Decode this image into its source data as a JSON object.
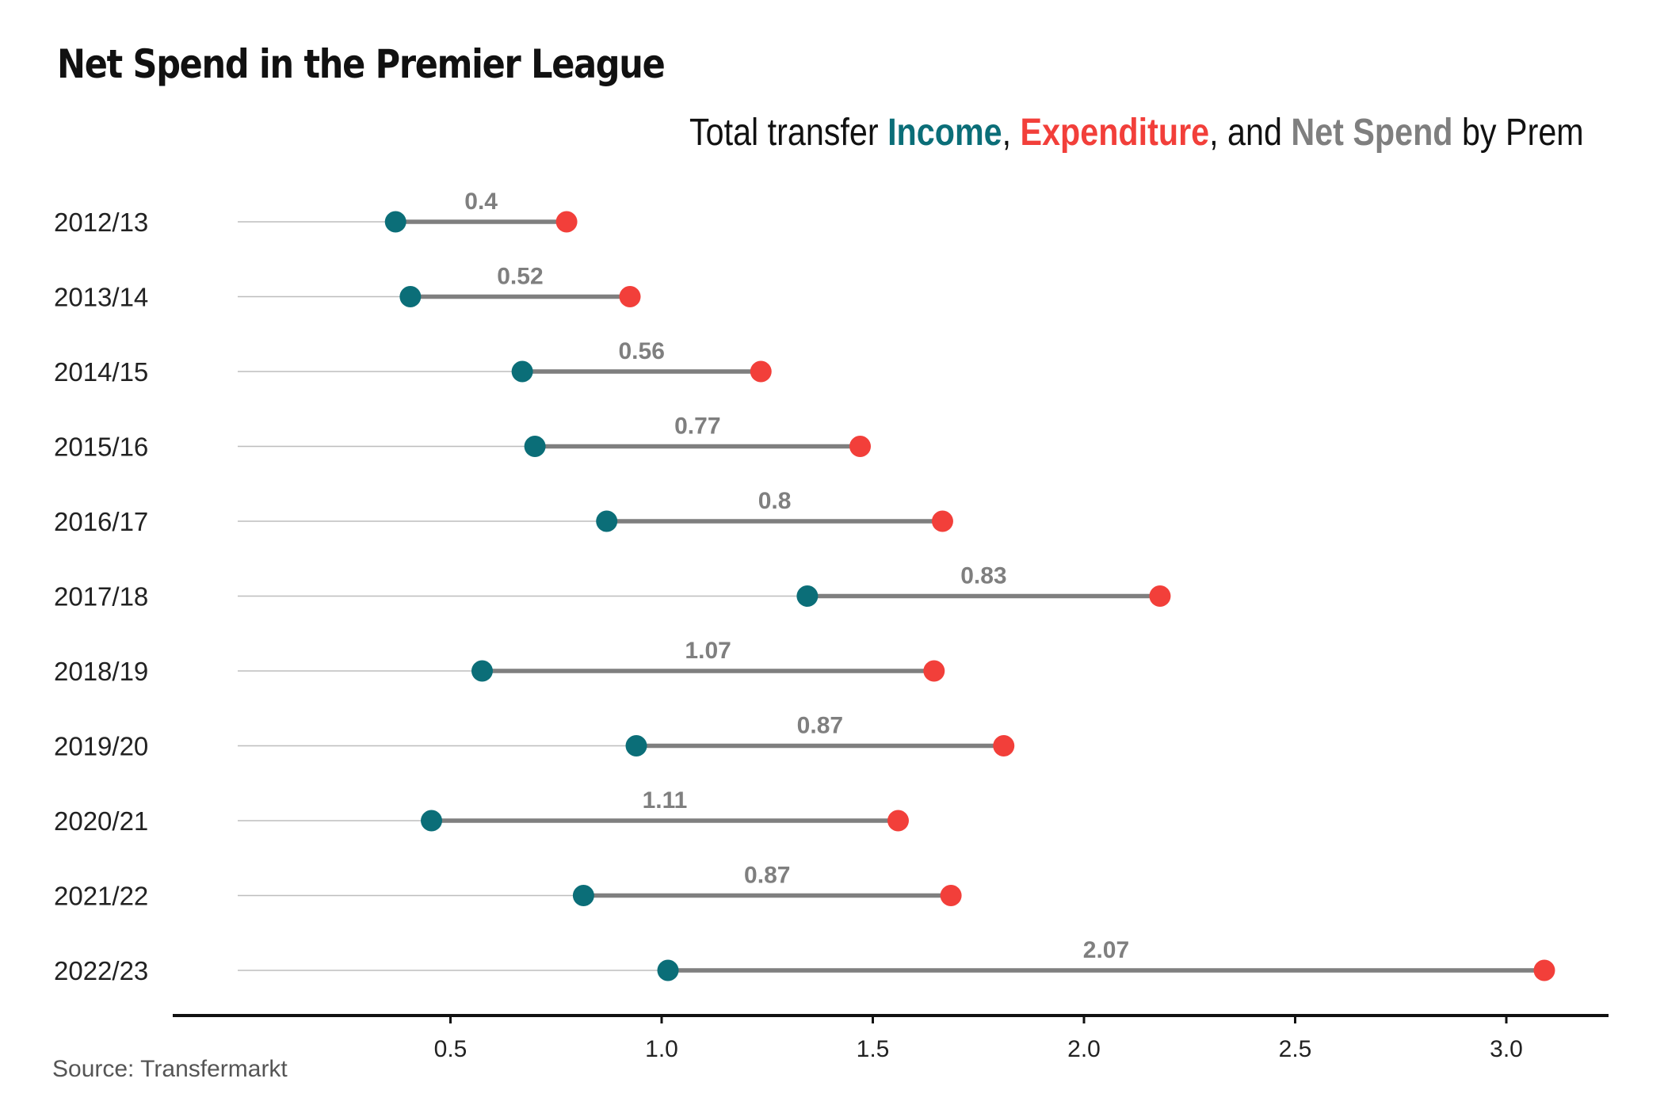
{
  "title": "Net Spend in the Premier League",
  "subtitle": {
    "prefix": "Total transfer ",
    "income": "Income",
    "sep1": ", ",
    "expenditure": "Expenditure",
    "sep2": ", and ",
    "net": "Net Spend",
    "suffix": " by Prem"
  },
  "source": "Source: Transfermarkt",
  "colors": {
    "income": "#0b6e78",
    "expenditure": "#f23f3a",
    "net": "#7f7f7f",
    "guide": "#bdbdbd",
    "axis": "#111111"
  },
  "chart_data": {
    "type": "dumbbell",
    "title": "Net Spend in the Premier League",
    "xlabel": "",
    "ylabel": "",
    "xlim": [
      0.0,
      3.25
    ],
    "xticks": [
      0.5,
      1.0,
      1.5,
      2.0,
      2.5,
      3.0
    ],
    "xtick_labels": [
      "0.5",
      "1.0",
      "1.5",
      "2.0",
      "2.5",
      "3.0"
    ],
    "categories": [
      "2012/13",
      "2013/14",
      "2014/15",
      "2015/16",
      "2016/17",
      "2017/18",
      "2018/19",
      "2019/20",
      "2020/21",
      "2021/22",
      "2022/23"
    ],
    "series": [
      {
        "name": "Income",
        "values": [
          0.37,
          0.405,
          0.67,
          0.7,
          0.87,
          1.345,
          0.575,
          0.94,
          0.455,
          0.815,
          1.015
        ]
      },
      {
        "name": "Expenditure",
        "values": [
          0.775,
          0.925,
          1.235,
          1.47,
          1.665,
          2.18,
          1.645,
          1.81,
          1.56,
          1.685,
          3.09
        ]
      }
    ],
    "net_spend_labels": [
      "0.4",
      "0.52",
      "0.56",
      "0.77",
      "0.8",
      "0.83",
      "1.07",
      "0.87",
      "1.11",
      "0.87",
      "2.07"
    ],
    "grid": false,
    "legend": "in subtitle"
  }
}
